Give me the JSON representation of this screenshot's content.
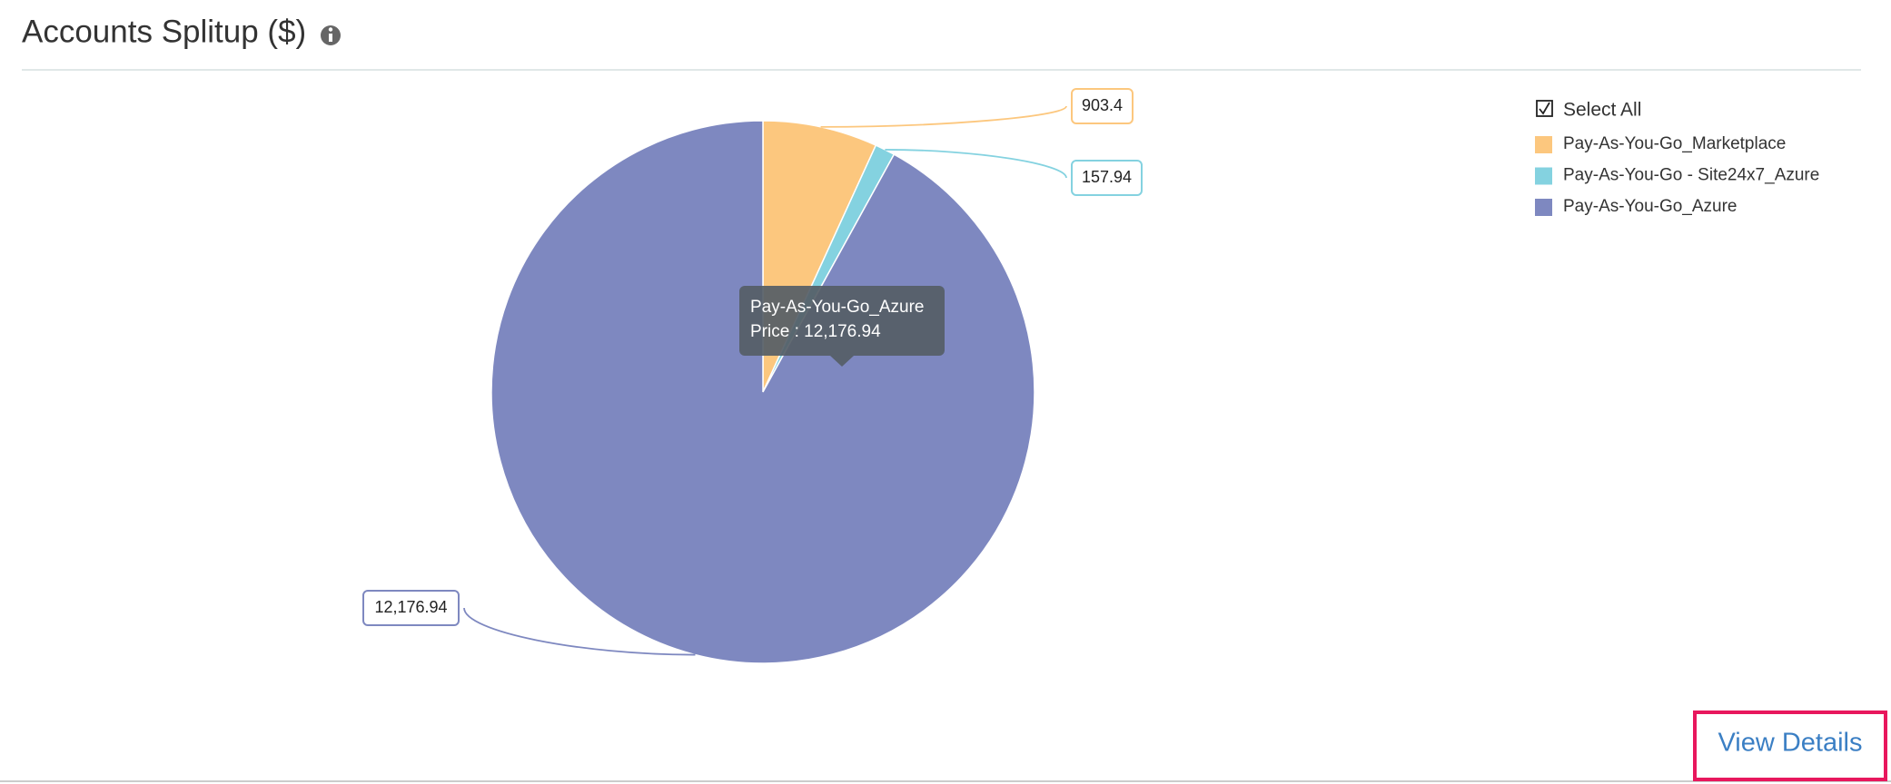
{
  "header": {
    "title": "Accounts Splitup ($)"
  },
  "chart_data": {
    "type": "pie",
    "labels": [
      "Pay-As-You-Go_Marketplace",
      "Pay-As-You-Go - Site24x7_Azure",
      "Pay-As-You-Go_Azure"
    ],
    "values": [
      903.4,
      157.94,
      12176.94
    ],
    "value_labels": [
      "903.4",
      "157.94",
      "12,176.94"
    ],
    "colors": [
      "#fcc77e",
      "#84d2e0",
      "#7e88c0"
    ],
    "legend_position": "top-right",
    "select_all": "Select All",
    "tooltip": "Price : 12,176.94"
  },
  "footer": {
    "link": "View Details"
  }
}
